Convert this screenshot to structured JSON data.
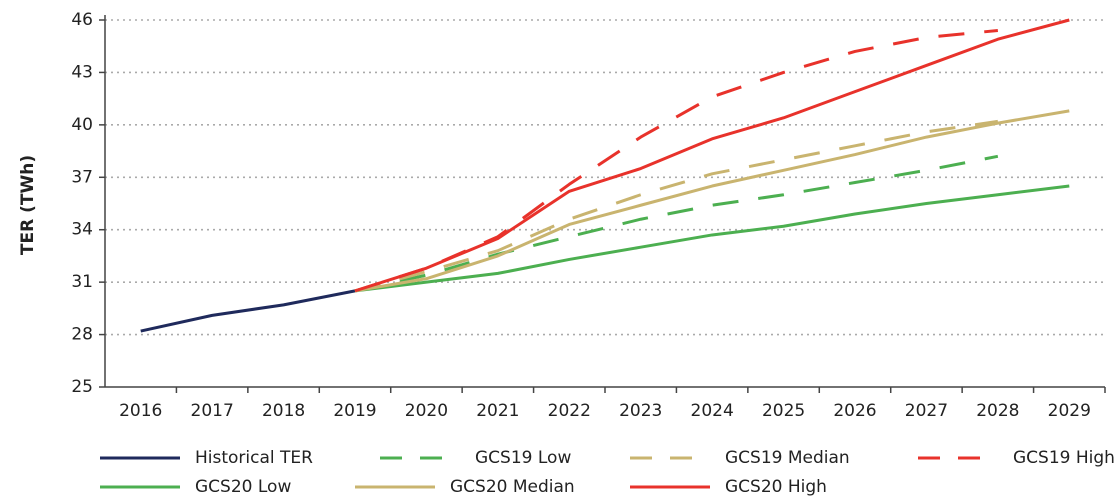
{
  "chart_data": {
    "type": "line",
    "ylabel": "TER (TWh)",
    "categories": [
      "2016",
      "2017",
      "2018",
      "2019",
      "2020",
      "2021",
      "2022",
      "2023",
      "2024",
      "2025",
      "2026",
      "2027",
      "2028",
      "2029"
    ],
    "ylim": [
      25,
      46
    ],
    "yticks": [
      25,
      28,
      31,
      34,
      37,
      40,
      43,
      46
    ],
    "grid": true,
    "legend": "bottom",
    "series": [
      {
        "name": "Historical TER",
        "color": "#1f2a5c",
        "style": "solid",
        "values": [
          28.2,
          29.1,
          29.7,
          30.5,
          null,
          null,
          null,
          null,
          null,
          null,
          null,
          null,
          null,
          null
        ]
      },
      {
        "name": "GCS19 Low",
        "color": "#4caf50",
        "style": "dashed",
        "values": [
          null,
          null,
          null,
          30.5,
          31.4,
          32.6,
          33.6,
          34.6,
          35.4,
          36.0,
          36.7,
          37.4,
          38.2,
          null
        ]
      },
      {
        "name": "GCS19 Median",
        "color": "#c9b46f",
        "style": "dashed",
        "values": [
          null,
          null,
          null,
          30.5,
          31.6,
          32.8,
          34.6,
          36.0,
          37.2,
          38.0,
          38.8,
          39.6,
          40.2,
          null
        ]
      },
      {
        "name": "GCS19 High",
        "color": "#e8322b",
        "style": "dashed",
        "values": [
          null,
          null,
          null,
          30.5,
          31.8,
          33.6,
          36.6,
          39.3,
          41.6,
          43.0,
          44.2,
          45.0,
          45.4,
          null
        ]
      },
      {
        "name": "GCS20 Low",
        "color": "#4caf50",
        "style": "solid",
        "values": [
          null,
          null,
          null,
          30.5,
          31.0,
          31.5,
          32.3,
          33.0,
          33.7,
          34.2,
          34.9,
          35.5,
          36.0,
          36.5
        ]
      },
      {
        "name": "GCS20 Median",
        "color": "#c9b46f",
        "style": "solid",
        "values": [
          null,
          null,
          null,
          30.5,
          31.2,
          32.5,
          34.3,
          35.4,
          36.5,
          37.4,
          38.3,
          39.3,
          40.1,
          40.8
        ]
      },
      {
        "name": "GCS20 High",
        "color": "#e8322b",
        "style": "solid",
        "values": [
          null,
          null,
          null,
          30.5,
          31.8,
          33.5,
          36.2,
          37.5,
          39.2,
          40.4,
          41.9,
          43.4,
          44.9,
          46.0
        ]
      }
    ]
  }
}
